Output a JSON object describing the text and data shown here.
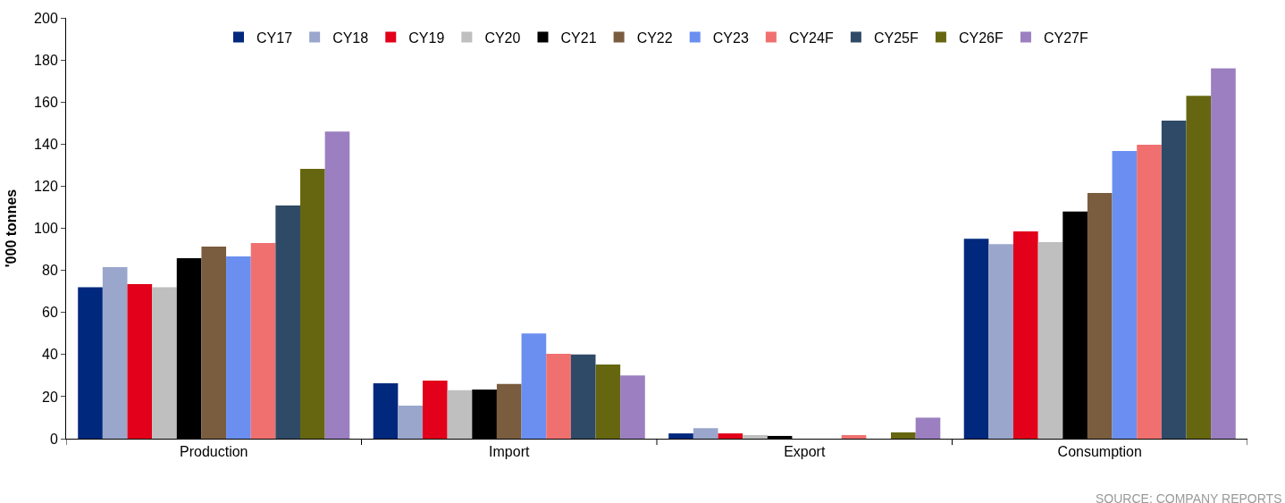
{
  "chart_data": {
    "type": "bar",
    "ylabel": "'000 tonnes",
    "categories": [
      "Production",
      "Import",
      "Export",
      "Consumption"
    ],
    "series": [
      {
        "name": "CY17",
        "color": "#00287d",
        "values": [
          72,
          26.3,
          2.5,
          95
        ]
      },
      {
        "name": "CY18",
        "color": "#9aa6cc",
        "values": [
          81.5,
          15.7,
          5,
          92.5
        ]
      },
      {
        "name": "CY19",
        "color": "#e2001a",
        "values": [
          73.5,
          27.6,
          2.5,
          98.5
        ]
      },
      {
        "name": "CY20",
        "color": "#bfbfbf",
        "values": [
          72,
          23,
          1.7,
          93.4
        ]
      },
      {
        "name": "CY21",
        "color": "#000000",
        "values": [
          85.8,
          23.4,
          1.3,
          108
        ]
      },
      {
        "name": "CY22",
        "color": "#7a5c3e",
        "values": [
          91.3,
          26,
          0,
          116.8
        ]
      },
      {
        "name": "CY23",
        "color": "#6b8ff0",
        "values": [
          86.6,
          50,
          0,
          136.7
        ]
      },
      {
        "name": "CY24F",
        "color": "#f07070",
        "values": [
          93,
          40.3,
          1.7,
          139.7
        ]
      },
      {
        "name": "CY25F",
        "color": "#2f4a66",
        "values": [
          110.8,
          40,
          0,
          151.2
        ]
      },
      {
        "name": "CY26F",
        "color": "#666610",
        "values": [
          128.2,
          35.2,
          3,
          163
        ]
      },
      {
        "name": "CY27F",
        "color": "#9b7fc0",
        "values": [
          146,
          30,
          10,
          176
        ]
      }
    ],
    "ylim": [
      0,
      200
    ],
    "yticks": [
      0,
      20,
      40,
      60,
      80,
      100,
      120,
      140,
      160,
      180,
      200
    ],
    "legend": "top",
    "annotations": [
      "SOURCE: COMPANY REPORTS"
    ]
  }
}
